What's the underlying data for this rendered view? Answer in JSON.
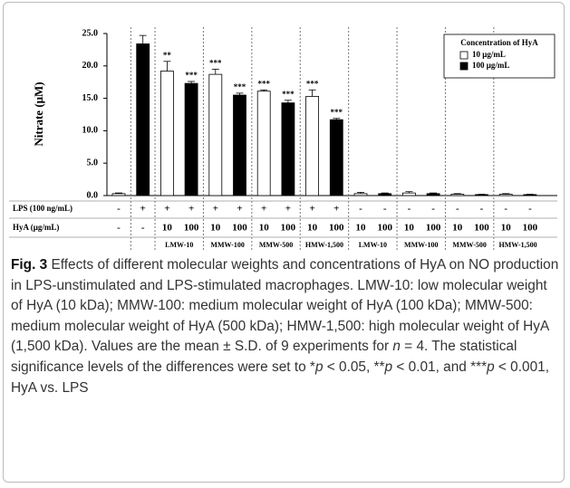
{
  "chart_data": {
    "type": "bar",
    "ylabel": "Nitrate (μM)",
    "ylim": [
      0,
      25
    ],
    "yticks": [
      {
        "value": 0,
        "label": "0.0"
      },
      {
        "value": 5,
        "label": "5.0"
      },
      {
        "value": 10,
        "label": "10.0"
      },
      {
        "value": 15,
        "label": "15.0"
      },
      {
        "value": 20,
        "label": "20.0"
      },
      {
        "value": 25,
        "label": "25.0"
      }
    ],
    "legend_title": "Concentration of HyA",
    "legend": "upper right",
    "series": [
      {
        "name": "10 μg/mL",
        "color": "#ffffff",
        "values": [
          0.3,
          19.2,
          18.7,
          16.1,
          15.3,
          0.3,
          0.4,
          0.2,
          0.2
        ],
        "errors": [
          0.1,
          1.5,
          0.8,
          0.2,
          1.0,
          0.2,
          0.2,
          0.1,
          0.1
        ],
        "significance": [
          null,
          "**",
          "***",
          "***",
          "***",
          null,
          null,
          null,
          null
        ]
      },
      {
        "name": "100 μg/mL",
        "color": "#000000",
        "values": [
          23.4,
          17.3,
          15.5,
          14.3,
          11.7,
          0.3,
          0.3,
          0.15,
          0.15
        ],
        "errors": [
          1.3,
          0.3,
          0.3,
          0.4,
          0.2,
          0.1,
          0.1,
          0.05,
          0.05
        ],
        "significance": [
          null,
          "***",
          "***",
          "***",
          "***",
          null,
          null,
          null,
          null
        ]
      }
    ],
    "rows": [
      {
        "label": "LPS (100 ng/mL)",
        "cells": [
          "-",
          "+",
          "+",
          "+",
          "+",
          "+",
          "+",
          "+",
          "+",
          "+",
          "-",
          "-",
          "-",
          "-",
          "-",
          "-",
          "-",
          "-"
        ]
      },
      {
        "label": "HyA (μg/mL)",
        "cells": [
          "-",
          "-",
          "10",
          "100",
          "10",
          "100",
          "10",
          "100",
          "10",
          "100",
          "10",
          "100",
          "10",
          "100",
          "10",
          "100",
          "10",
          "100"
        ]
      }
    ],
    "groups": [
      "LMW-10",
      "MMW-100",
      "MMW-500",
      "HMW-1,500",
      "LMW-10",
      "MMW-100",
      "MMW-500",
      "HMW-1,500"
    ]
  },
  "caption": [
    {
      "text": "Fig. 3",
      "bold": true
    },
    {
      "text": " Effects of different molecular weights and concentrations of HyA on NO production in LPS-unstimulated and LPS-stimulated macrophages. LMW-10: low molecular weight of HyA (10 kDa); MMW-100: medium molecular weight of HyA (100 kDa); MMW-500: medium molecular weight of HyA (500 kDa); HMW-1,500: high molecular weight of HyA (1,500 kDa). Values are the mean ± S.D. of 9 experiments for "
    },
    {
      "text": "n",
      "italic": true
    },
    {
      "text": " = 4. The statistical significance levels of the differences were set to *"
    },
    {
      "text": "p",
      "italic": true
    },
    {
      "text": " < 0.05, **"
    },
    {
      "text": "p",
      "italic": true
    },
    {
      "text": " < 0.01, and ***"
    },
    {
      "text": "p",
      "italic": true
    },
    {
      "text": " < 0.001, HyA vs. LPS"
    }
  ]
}
